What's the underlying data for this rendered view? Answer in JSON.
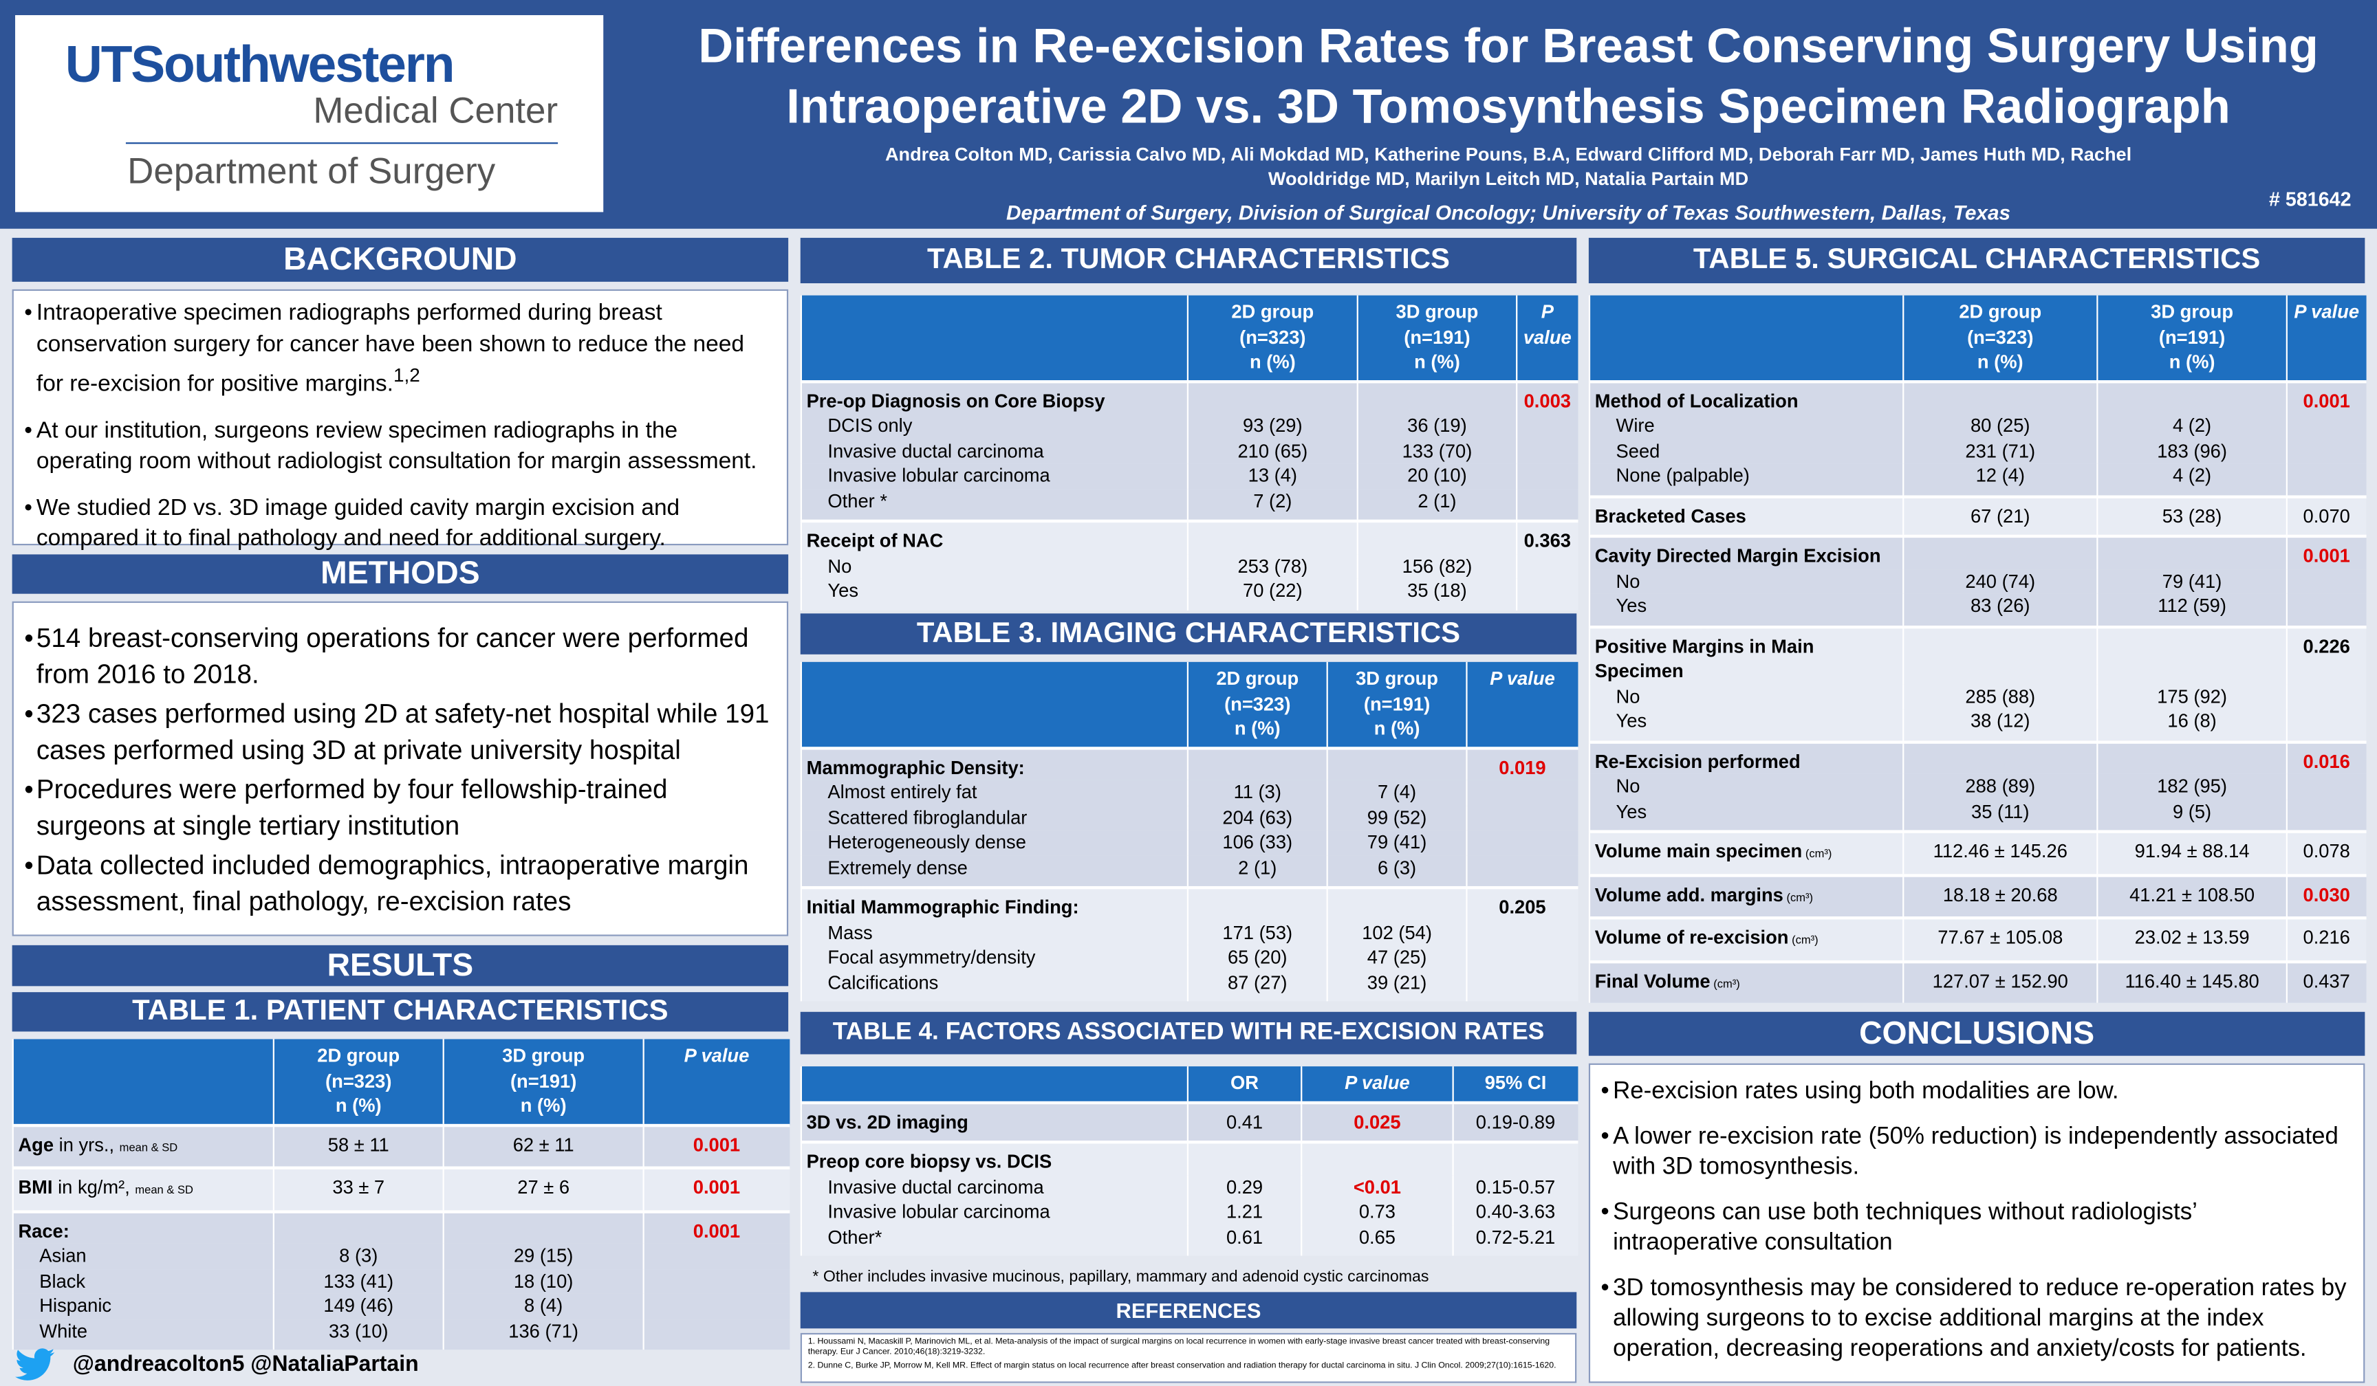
{
  "header": {
    "logo_name": "UTSouthwestern",
    "logo_subtitle": "Medical Center",
    "logo_department": "Department of Surgery",
    "title": [
      "Differences in Re-excision Rates for Breast Conserving Surgery Using",
      "Intraoperative 2D vs. 3D Tomosynthesis Specimen Radiograph"
    ],
    "authors": "Andrea Colton MD, Carissia Calvo MD, Ali Mokdad MD, Katherine Pouns, B.A, Edward Clifford MD, Deborah Farr MD, James Huth MD, Rachel Wooldridge MD, Marilyn Leitch MD, Natalia Partain MD",
    "affiliation": "Department of Surgery, Division of Surgical Oncology; University of Texas Southwestern, Dallas, Texas",
    "abstract_id": "# 581642"
  },
  "background": {
    "heading": "BACKGROUND",
    "items": [
      {
        "text": "Intraoperative specimen radiographs performed during breast conservation surgery for cancer have been shown to reduce the need for re-excision for positive margins.",
        "citation": "1,2"
      },
      {
        "text": "At our institution, surgeons review specimen radiographs in the operating room without radiologist consultation for margin assessment."
      },
      {
        "text": "We studied 2D vs. 3D image guided cavity margin excision and compared it to final pathology and need for additional surgery."
      }
    ]
  },
  "methods": {
    "heading": "METHODS",
    "items": [
      "514 breast-conserving operations for cancer were performed from 2016 to 2018.",
      "323 cases performed using 2D at safety-net hospital while 191 cases performed using 3D at private university hospital",
      "Procedures were performed by four fellowship-trained surgeons at single tertiary institution",
      "Data collected included demographics, intraoperative margin assessment, final pathology, re-excision rates"
    ]
  },
  "results": {
    "heading": "RESULTS"
  },
  "table1": {
    "title": "TABLE 1. PATIENT CHARACTERISTICS",
    "widths": [
      172,
      112,
      132,
      96
    ],
    "columns": [
      [
        "2D group",
        "(n=323)",
        "n (%)"
      ],
      [
        "3D group",
        "(n=191)",
        "n (%)"
      ],
      [
        "P value"
      ]
    ],
    "groups": [
      {
        "label": "Age",
        "label_rest": " in yrs., ",
        "note": "mean & SD",
        "cells": [
          "58 ± 11",
          "62 ± 11",
          {
            "text": "0.001",
            "color": "#e00000"
          }
        ]
      },
      {
        "label": "BMI",
        "label_rest": " in kg/m², ",
        "note": "mean & SD",
        "cells": [
          "33 ± 7",
          "27 ± 6",
          {
            "text": "0.001",
            "color": "#e00000"
          }
        ]
      },
      {
        "label": "Race:",
        "p": {
          "text": "0.001",
          "color": "#e00000"
        },
        "rows": [
          {
            "label": "Asian",
            "cells": [
              "8 (3)",
              "29 (15)"
            ]
          },
          {
            "label": "Black",
            "cells": [
              "133 (41)",
              "18 (10)"
            ]
          },
          {
            "label": "Hispanic",
            "cells": [
              "149 (46)",
              "8 (4)"
            ]
          },
          {
            "label": "White",
            "cells": [
              "33 (10)",
              "136 (71)"
            ]
          }
        ]
      }
    ]
  },
  "table2": {
    "title": "TABLE 2. TUMOR CHARACTERISTICS",
    "widths": [
      255,
      112,
      105,
      40
    ],
    "columns": [
      [
        "2D group",
        "(n=323)",
        "n (%)"
      ],
      [
        "3D group",
        "(n=191)",
        "n (%)"
      ],
      [
        "P value"
      ]
    ],
    "groups": [
      {
        "label": "Pre-op Diagnosis on Core Biopsy",
        "p": {
          "text": "0.003",
          "color": "#e00000"
        },
        "rows": [
          {
            "label": "DCIS only",
            "cells": [
              "93 (29)",
              "36 (19)"
            ]
          },
          {
            "label": "Invasive ductal carcinoma",
            "cells": [
              "210 (65)",
              "133 (70)"
            ]
          },
          {
            "label": "Invasive lobular carcinoma",
            "cells": [
              "13 (4)",
              "20 (10)"
            ]
          },
          {
            "label": "Other *",
            "cells": [
              "7 (2)",
              "2 (1)"
            ]
          }
        ]
      },
      {
        "label": "Receipt of NAC",
        "p": {
          "text": "0.363"
        },
        "rows": [
          {
            "label": "No",
            "cells": [
              "253 (78)",
              "156 (82)"
            ]
          },
          {
            "label": "Yes",
            "cells": [
              "70 (22)",
              "35 (18)"
            ]
          }
        ]
      }
    ]
  },
  "table3": {
    "title": "TABLE 3. IMAGING CHARACTERISTICS",
    "widths": [
      255,
      92,
      92,
      73
    ],
    "columns": [
      [
        "2D group",
        "(n=323)",
        "n (%)"
      ],
      [
        "3D group",
        "(n=191)",
        "n (%)"
      ],
      [
        "P value"
      ]
    ],
    "groups": [
      {
        "label": "Mammographic Density:",
        "p": {
          "text": "0.019",
          "color": "#e00000"
        },
        "rows": [
          {
            "label": "Almost entirely fat",
            "cells": [
              "11 (3)",
              "7 (4)"
            ]
          },
          {
            "label": "Scattered fibroglandular",
            "cells": [
              "204 (63)",
              "99 (52)"
            ]
          },
          {
            "label": "Heterogeneously dense",
            "cells": [
              "106 (33)",
              "79 (41)"
            ]
          },
          {
            "label": "Extremely dense",
            "cells": [
              "2 (1)",
              "6 (3)"
            ]
          }
        ]
      },
      {
        "label": "Initial Mammographic Finding:",
        "p": {
          "text": "0.205"
        },
        "rows": [
          {
            "label": "Mass",
            "cells": [
              "171 (53)",
              "102 (54)"
            ]
          },
          {
            "label": "Focal asymmetry/density",
            "cells": [
              "65 (20)",
              "47 (25)"
            ]
          },
          {
            "label": "Calcifications",
            "cells": [
              "87 (27)",
              "39 (21)"
            ]
          }
        ]
      }
    ]
  },
  "table4": {
    "title": "TABLE 4. FACTORS ASSOCIATED WITH RE-EXCISION RATES",
    "widths": [
      255,
      75,
      100,
      82
    ],
    "columns": [
      [
        "OR"
      ],
      [
        "P value"
      ],
      [
        "95% CI"
      ]
    ],
    "groups": [
      {
        "label": "3D vs. 2D imaging",
        "cells": [
          "0.41",
          {
            "text": "0.025",
            "color": "#e00000"
          },
          "0.19-0.89"
        ]
      },
      {
        "label": "Preop core biopsy vs. DCIS",
        "rows": [
          {
            "label": "Invasive ductal carcinoma",
            "cells": [
              "0.29",
              {
                "text": "<0.01",
                "color": "#e00000"
              },
              "0.15-0.57"
            ]
          },
          {
            "label": "Invasive lobular carcinoma",
            "cells": [
              "1.21",
              "0.73",
              "0.40-3.63"
            ]
          },
          {
            "label": "Other*",
            "cells": [
              "0.61",
              "0.65",
              "0.72-5.21"
            ]
          }
        ]
      }
    ],
    "footnote": "* Other includes invasive mucinous, papillary, mammary and adenoid cystic carcinomas"
  },
  "table5": {
    "title": "TABLE 5. SURGICAL CHARACTERISTICS",
    "widths": [
      207,
      128,
      125,
      52
    ],
    "columns": [
      [
        "2D group",
        "(n=323)",
        "n (%)"
      ],
      [
        "3D group",
        "(n=191)",
        "n (%)"
      ],
      [
        "P value"
      ]
    ],
    "groups": [
      {
        "label": "Method of Localization",
        "p": {
          "text": "0.001",
          "color": "#e00000"
        },
        "rows": [
          {
            "label": "Wire",
            "cells": [
              "80 (25)",
              "4 (2)"
            ]
          },
          {
            "label": "Seed",
            "cells": [
              "231 (71)",
              "183 (96)"
            ]
          },
          {
            "label": "None (palpable)",
            "cells": [
              "12 (4)",
              "4 (2)"
            ]
          }
        ]
      },
      {
        "label": "Bracketed Cases",
        "cells": [
          "67 (21)",
          "53 (28)",
          "0.070"
        ]
      },
      {
        "label": "Cavity Directed Margin Excision",
        "p": {
          "text": "0.001",
          "color": "#e00000"
        },
        "rows": [
          {
            "label": "No",
            "cells": [
              "240 (74)",
              "79 (41)"
            ]
          },
          {
            "label": "Yes",
            "cells": [
              "83 (26)",
              "112 (59)"
            ]
          }
        ]
      },
      {
        "label": "Positive Margins in Main Specimen",
        "p": {
          "text": "0.226"
        },
        "rows": [
          {
            "label": "No",
            "cells": [
              "285 (88)",
              "175 (92)"
            ]
          },
          {
            "label": "Yes",
            "cells": [
              "38 (12)",
              "16 (8)"
            ]
          }
        ]
      },
      {
        "label": "Re-Excision performed",
        "p": {
          "text": "0.016",
          "color": "#e00000"
        },
        "rows": [
          {
            "label": "No",
            "cells": [
              "288 (89)",
              "182 (95)"
            ]
          },
          {
            "label": "Yes",
            "cells": [
              "35 (11)",
              "9 (5)"
            ]
          }
        ]
      },
      {
        "label": "Volume main specimen",
        "note": " (cm³)",
        "cells": [
          "112.46 ± 145.26",
          "91.94 ± 88.14",
          "0.078"
        ]
      },
      {
        "label": "Volume add. margins",
        "note": " (cm³)",
        "cells": [
          "18.18 ± 20.68",
          "41.21 ± 108.50",
          {
            "text": "0.030",
            "color": "#e00000"
          }
        ]
      },
      {
        "label": "Volume of re-excision",
        "note": " (cm³)",
        "cells": [
          "77.67 ± 105.08",
          "23.02 ± 13.59",
          "0.216"
        ]
      },
      {
        "label": "Final Volume",
        "note": " (cm³)",
        "cells": [
          "127.07 ± 152.90",
          "116.40 ± 145.80",
          "0.437"
        ]
      }
    ]
  },
  "conclusions": {
    "heading": "CONCLUSIONS",
    "items": [
      "Re-excision rates using both modalities are low.",
      "A lower re-excision rate (50% reduction) is independently associated with 3D tomosynthesis.",
      "Surgeons can use both techniques without radiologists’ intraoperative consultation",
      "3D tomosynthesis may be considered to reduce re-operation rates by allowing surgeons to to excise additional margins at the index operation, decreasing reoperations and anxiety/costs for patients."
    ]
  },
  "references": {
    "heading": "REFERENCES",
    "items": [
      "1. Houssami N, Macaskill P, Marinovich ML, et al. Meta-analysis of the impact of surgical margins on local recurrence in women with early-stage invasive breast cancer treated with breast-conserving therapy. Eur J Cancer. 2010;46(18):3219-3232.",
      "2. Dunne C, Burke JP, Morrow M, Kell MR. Effect of margin status on local recurrence after breast conservation and radiation therapy for ductal carcinoma in situ. J Clin Oncol. 2009;27(10):1615-1620."
    ]
  },
  "social": {
    "handles": "@andreacolton5 @NataliaPartain"
  }
}
